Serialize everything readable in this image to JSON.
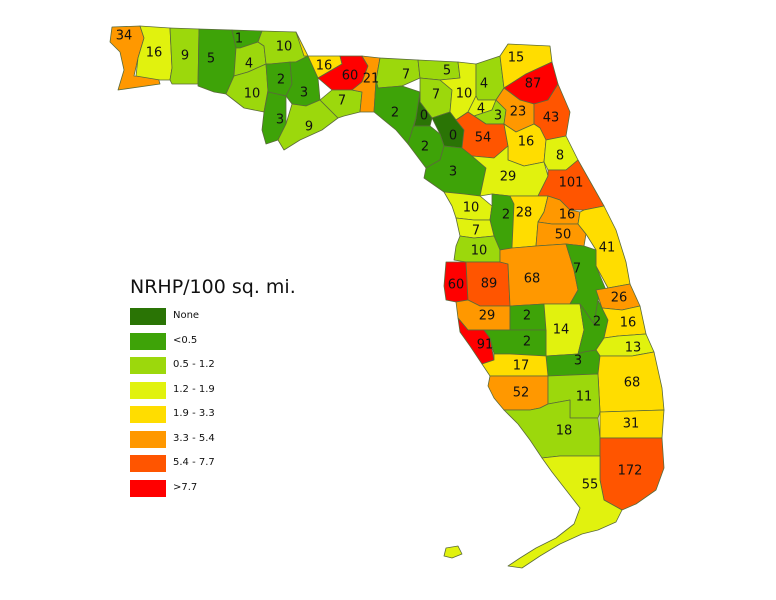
{
  "legend": {
    "title": "NRHP/100 sq. mi.",
    "items": [
      {
        "label": "None",
        "color": "#2a7405"
      },
      {
        "label": "<0.5",
        "color": "#3ea308"
      },
      {
        "label": "0.5 - 1.2",
        "color": "#9cd80c"
      },
      {
        "label": "1.2 - 1.9",
        "color": "#e1f20e"
      },
      {
        "label": "1.9 - 3.3",
        "color": "#ffdd00"
      },
      {
        "label": "3.3 - 5.4",
        "color": "#ff9800"
      },
      {
        "label": "5.4 - 7.7",
        "color": "#ff5500"
      },
      {
        "label": ">7.7",
        "color": "#ff0000"
      }
    ]
  },
  "counties": [
    {
      "id": "escambia",
      "label": "34",
      "cls": 5
    },
    {
      "id": "santa-rosa",
      "label": "16",
      "cls": 3
    },
    {
      "id": "okaloosa",
      "label": "9",
      "cls": 2
    },
    {
      "id": "walton",
      "label": "5",
      "cls": 1
    },
    {
      "id": "holmes",
      "label": "1",
      "cls": 1
    },
    {
      "id": "washington",
      "label": "4",
      "cls": 2
    },
    {
      "id": "jackson",
      "label": "10",
      "cls": 2
    },
    {
      "id": "bay",
      "label": "10",
      "cls": 2
    },
    {
      "id": "calhoun",
      "label": "2",
      "cls": 1
    },
    {
      "id": "gulf",
      "label": "3",
      "cls": 1
    },
    {
      "id": "liberty",
      "label": "3",
      "cls": 1
    },
    {
      "id": "franklin",
      "label": "9",
      "cls": 2
    },
    {
      "id": "gadsden",
      "label": "16",
      "cls": 4
    },
    {
      "id": "leon",
      "label": "60",
      "cls": 7
    },
    {
      "id": "wakulla",
      "label": "7",
      "cls": 2
    },
    {
      "id": "jefferson",
      "label": "21",
      "cls": 5
    },
    {
      "id": "madison",
      "label": "7",
      "cls": 2
    },
    {
      "id": "taylor",
      "label": "2",
      "cls": 1
    },
    {
      "id": "hamilton",
      "label": "5",
      "cls": 2
    },
    {
      "id": "suwannee",
      "label": "7",
      "cls": 2
    },
    {
      "id": "lafayette",
      "label": "0",
      "cls": 0
    },
    {
      "id": "columbia",
      "label": "10",
      "cls": 3
    },
    {
      "id": "baker",
      "label": "4",
      "cls": 2
    },
    {
      "id": "nassau",
      "label": "15",
      "cls": 4
    },
    {
      "id": "duval",
      "label": "87",
      "cls": 7
    },
    {
      "id": "union",
      "label": "4",
      "cls": 3
    },
    {
      "id": "bradford",
      "label": "3",
      "cls": 2
    },
    {
      "id": "clay",
      "label": "23",
      "cls": 5
    },
    {
      "id": "st-johns",
      "label": "43",
      "cls": 6
    },
    {
      "id": "gilchrist",
      "label": "0",
      "cls": 0
    },
    {
      "id": "dixie",
      "label": "2",
      "cls": 1
    },
    {
      "id": "alachua",
      "label": "54",
      "cls": 6
    },
    {
      "id": "putnam",
      "label": "16",
      "cls": 4
    },
    {
      "id": "flagler",
      "label": "8",
      "cls": 3
    },
    {
      "id": "levy",
      "label": "3",
      "cls": 1
    },
    {
      "id": "marion",
      "label": "29",
      "cls": 3
    },
    {
      "id": "volusia",
      "label": "101",
      "cls": 6
    },
    {
      "id": "citrus",
      "label": "10",
      "cls": 3
    },
    {
      "id": "sumter",
      "label": "2",
      "cls": 1
    },
    {
      "id": "lake",
      "label": "28",
      "cls": 4
    },
    {
      "id": "seminole",
      "label": "16",
      "cls": 5
    },
    {
      "id": "hernando",
      "label": "7",
      "cls": 3
    },
    {
      "id": "orange",
      "label": "50",
      "cls": 5
    },
    {
      "id": "brevard",
      "label": "41",
      "cls": 4
    },
    {
      "id": "pasco",
      "label": "10",
      "cls": 2
    },
    {
      "id": "pinellas",
      "label": "60",
      "cls": 7
    },
    {
      "id": "hillsborough",
      "label": "89",
      "cls": 6
    },
    {
      "id": "polk",
      "label": "68",
      "cls": 5
    },
    {
      "id": "osceola",
      "label": "7",
      "cls": 1
    },
    {
      "id": "indian-river",
      "label": "26",
      "cls": 5
    },
    {
      "id": "manatee",
      "label": "29",
      "cls": 5
    },
    {
      "id": "hardee",
      "label": "2",
      "cls": 1
    },
    {
      "id": "highlands",
      "label": "14",
      "cls": 3
    },
    {
      "id": "okeechobee",
      "label": "2",
      "cls": 1
    },
    {
      "id": "st-lucie",
      "label": "16",
      "cls": 4
    },
    {
      "id": "martin",
      "label": "13",
      "cls": 3
    },
    {
      "id": "sarasota",
      "label": "91",
      "cls": 7
    },
    {
      "id": "desoto",
      "label": "2",
      "cls": 1
    },
    {
      "id": "glades",
      "label": "3",
      "cls": 1
    },
    {
      "id": "charlotte",
      "label": "17",
      "cls": 4
    },
    {
      "id": "palm-beach",
      "label": "68",
      "cls": 4
    },
    {
      "id": "lee",
      "label": "52",
      "cls": 5
    },
    {
      "id": "hendry",
      "label": "11",
      "cls": 2
    },
    {
      "id": "broward",
      "label": "31",
      "cls": 4
    },
    {
      "id": "collier",
      "label": "18",
      "cls": 2
    },
    {
      "id": "miami-dade",
      "label": "172",
      "cls": 6
    },
    {
      "id": "monroe",
      "label": "55",
      "cls": 3
    }
  ]
}
